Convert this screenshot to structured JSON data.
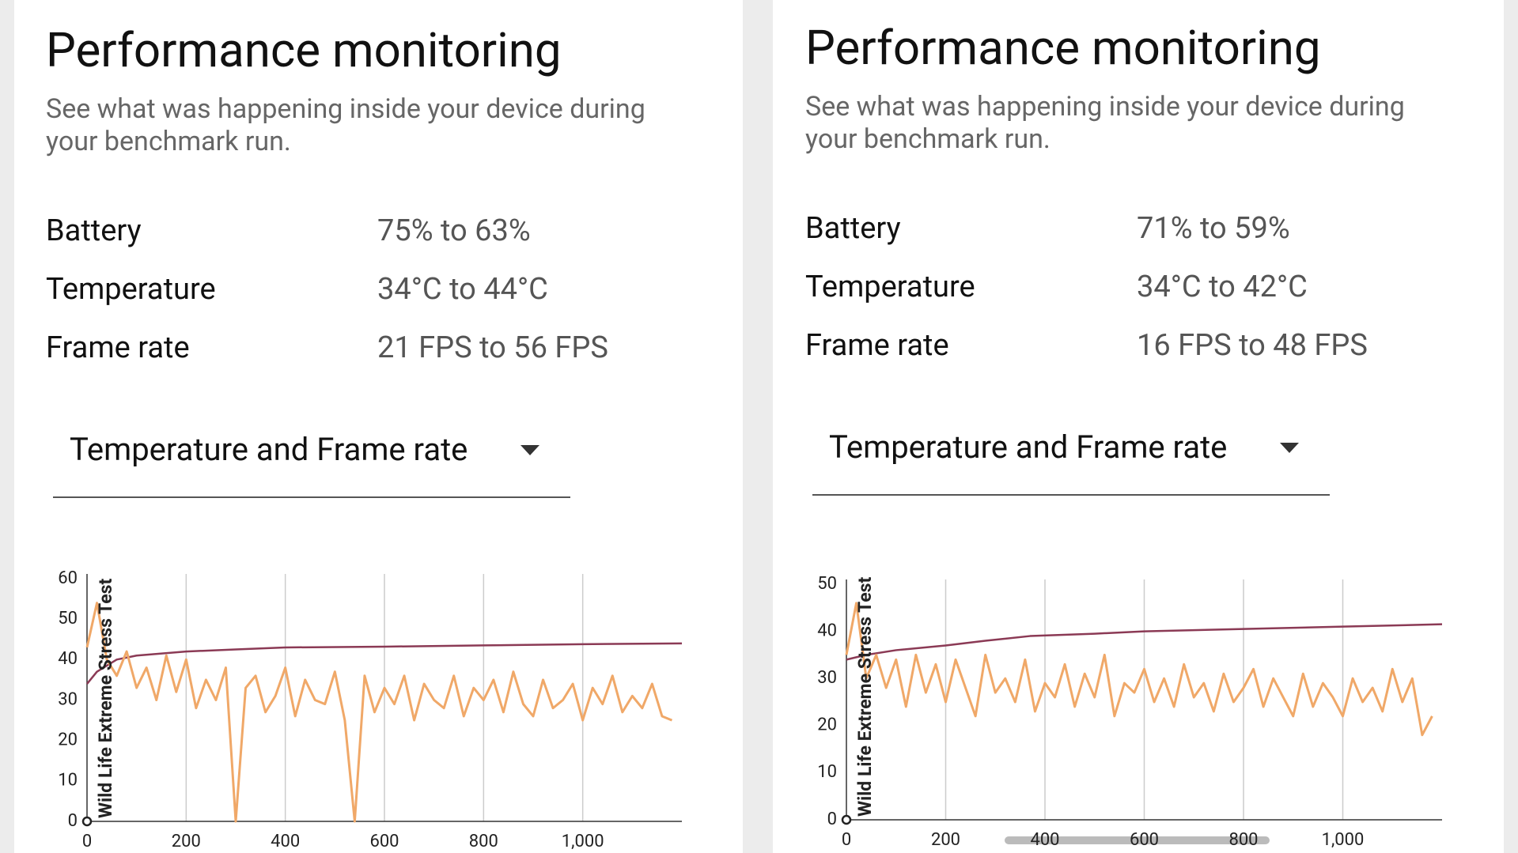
{
  "panels": [
    {
      "title": "Performance monitoring",
      "subtitle": "See what was happening inside your device during your benchmark run.",
      "stats": [
        {
          "label": "Battery",
          "value": "75% to 63%"
        },
        {
          "label": "Temperature",
          "value": "34°C to 44°C"
        },
        {
          "label": "Frame rate",
          "value": "21 FPS to 56 FPS"
        }
      ],
      "dropdown": "Temperature and Frame rate",
      "chart_data": {
        "type": "line",
        "annotation": "Wild Life Extreme Stress Test",
        "xlim": [
          0,
          1200
        ],
        "ylim": [
          0,
          60
        ],
        "xticks": [
          0,
          200,
          400,
          600,
          800,
          {
            "value": 1000,
            "label": "1,000"
          }
        ],
        "yticks": [
          0,
          10,
          20,
          30,
          40,
          50,
          60
        ],
        "grid": true,
        "series": [
          {
            "color": "#8b3a55",
            "x": [
              0,
              20,
              60,
              100,
              200,
              300,
              400,
              600,
              800,
              1000,
              1200
            ],
            "values": [
              34,
              37,
              40,
              41,
              42,
              42.5,
              43,
              43.2,
              43.5,
              43.8,
              44
            ]
          },
          {
            "color": "#f0a868",
            "x": [
              0,
              20,
              40,
              60,
              80,
              100,
              120,
              140,
              160,
              180,
              200,
              220,
              240,
              260,
              280,
              300,
              320,
              340,
              360,
              380,
              400,
              420,
              440,
              460,
              480,
              500,
              520,
              540,
              560,
              580,
              600,
              620,
              640,
              660,
              680,
              700,
              720,
              740,
              760,
              780,
              800,
              820,
              840,
              860,
              880,
              900,
              920,
              940,
              960,
              980,
              1000,
              1020,
              1040,
              1060,
              1080,
              1100,
              1120,
              1140,
              1160,
              1180
            ],
            "values": [
              43,
              54,
              40,
              36,
              42,
              33,
              38,
              30,
              41,
              32,
              40,
              28,
              35,
              30,
              38,
              0,
              33,
              36,
              27,
              31,
              38,
              26,
              35,
              30,
              29,
              37,
              25,
              0,
              36,
              27,
              33,
              29,
              36,
              25,
              34,
              30,
              28,
              36,
              26,
              33,
              30,
              35,
              27,
              37,
              29,
              26,
              35,
              28,
              30,
              34,
              25,
              33,
              29,
              36,
              27,
              31,
              28,
              34,
              26,
              25
            ]
          }
        ]
      }
    },
    {
      "title": "Performance monitoring",
      "subtitle": "See what was happening inside your device during your benchmark run.",
      "stats": [
        {
          "label": "Battery",
          "value": "71% to 59%"
        },
        {
          "label": "Temperature",
          "value": "34°C to 42°C"
        },
        {
          "label": "Frame rate",
          "value": "16 FPS to 48 FPS"
        }
      ],
      "dropdown": "Temperature and Frame rate",
      "chart_data": {
        "type": "line",
        "annotation": "Wild Life Extreme Stress Test",
        "xlim": [
          0,
          1200
        ],
        "ylim": [
          0,
          50
        ],
        "xticks": [
          0,
          200,
          400,
          600,
          800,
          {
            "value": 1000,
            "label": "1,000"
          }
        ],
        "yticks": [
          0,
          10,
          20,
          30,
          40,
          50
        ],
        "grid": true,
        "series": [
          {
            "color": "#8b3a55",
            "x": [
              0,
              40,
              100,
              200,
              280,
              370,
              500,
              600,
              800,
              1000,
              1200
            ],
            "values": [
              34,
              35,
              36,
              37,
              38,
              39,
              39.5,
              40,
              40.5,
              41,
              41.5
            ]
          },
          {
            "color": "#f0a868",
            "x": [
              0,
              20,
              40,
              60,
              80,
              100,
              120,
              140,
              160,
              180,
              200,
              220,
              240,
              260,
              280,
              300,
              320,
              340,
              360,
              380,
              400,
              420,
              440,
              460,
              480,
              500,
              520,
              540,
              560,
              580,
              600,
              620,
              640,
              660,
              680,
              700,
              720,
              740,
              760,
              780,
              800,
              820,
              840,
              860,
              880,
              900,
              920,
              940,
              960,
              980,
              1000,
              1020,
              1040,
              1060,
              1080,
              1100,
              1120,
              1140,
              1160,
              1180
            ],
            "values": [
              35,
              46,
              30,
              35,
              28,
              34,
              24,
              35,
              27,
              33,
              25,
              34,
              28,
              22,
              35,
              27,
              30,
              25,
              34,
              23,
              29,
              26,
              33,
              24,
              31,
              26,
              35,
              22,
              29,
              27,
              32,
              25,
              30,
              24,
              33,
              26,
              29,
              23,
              31,
              25,
              28,
              32,
              24,
              30,
              26,
              22,
              31,
              24,
              29,
              26,
              22,
              30,
              25,
              28,
              23,
              32,
              25,
              30,
              18,
              22
            ]
          }
        ]
      }
    }
  ]
}
